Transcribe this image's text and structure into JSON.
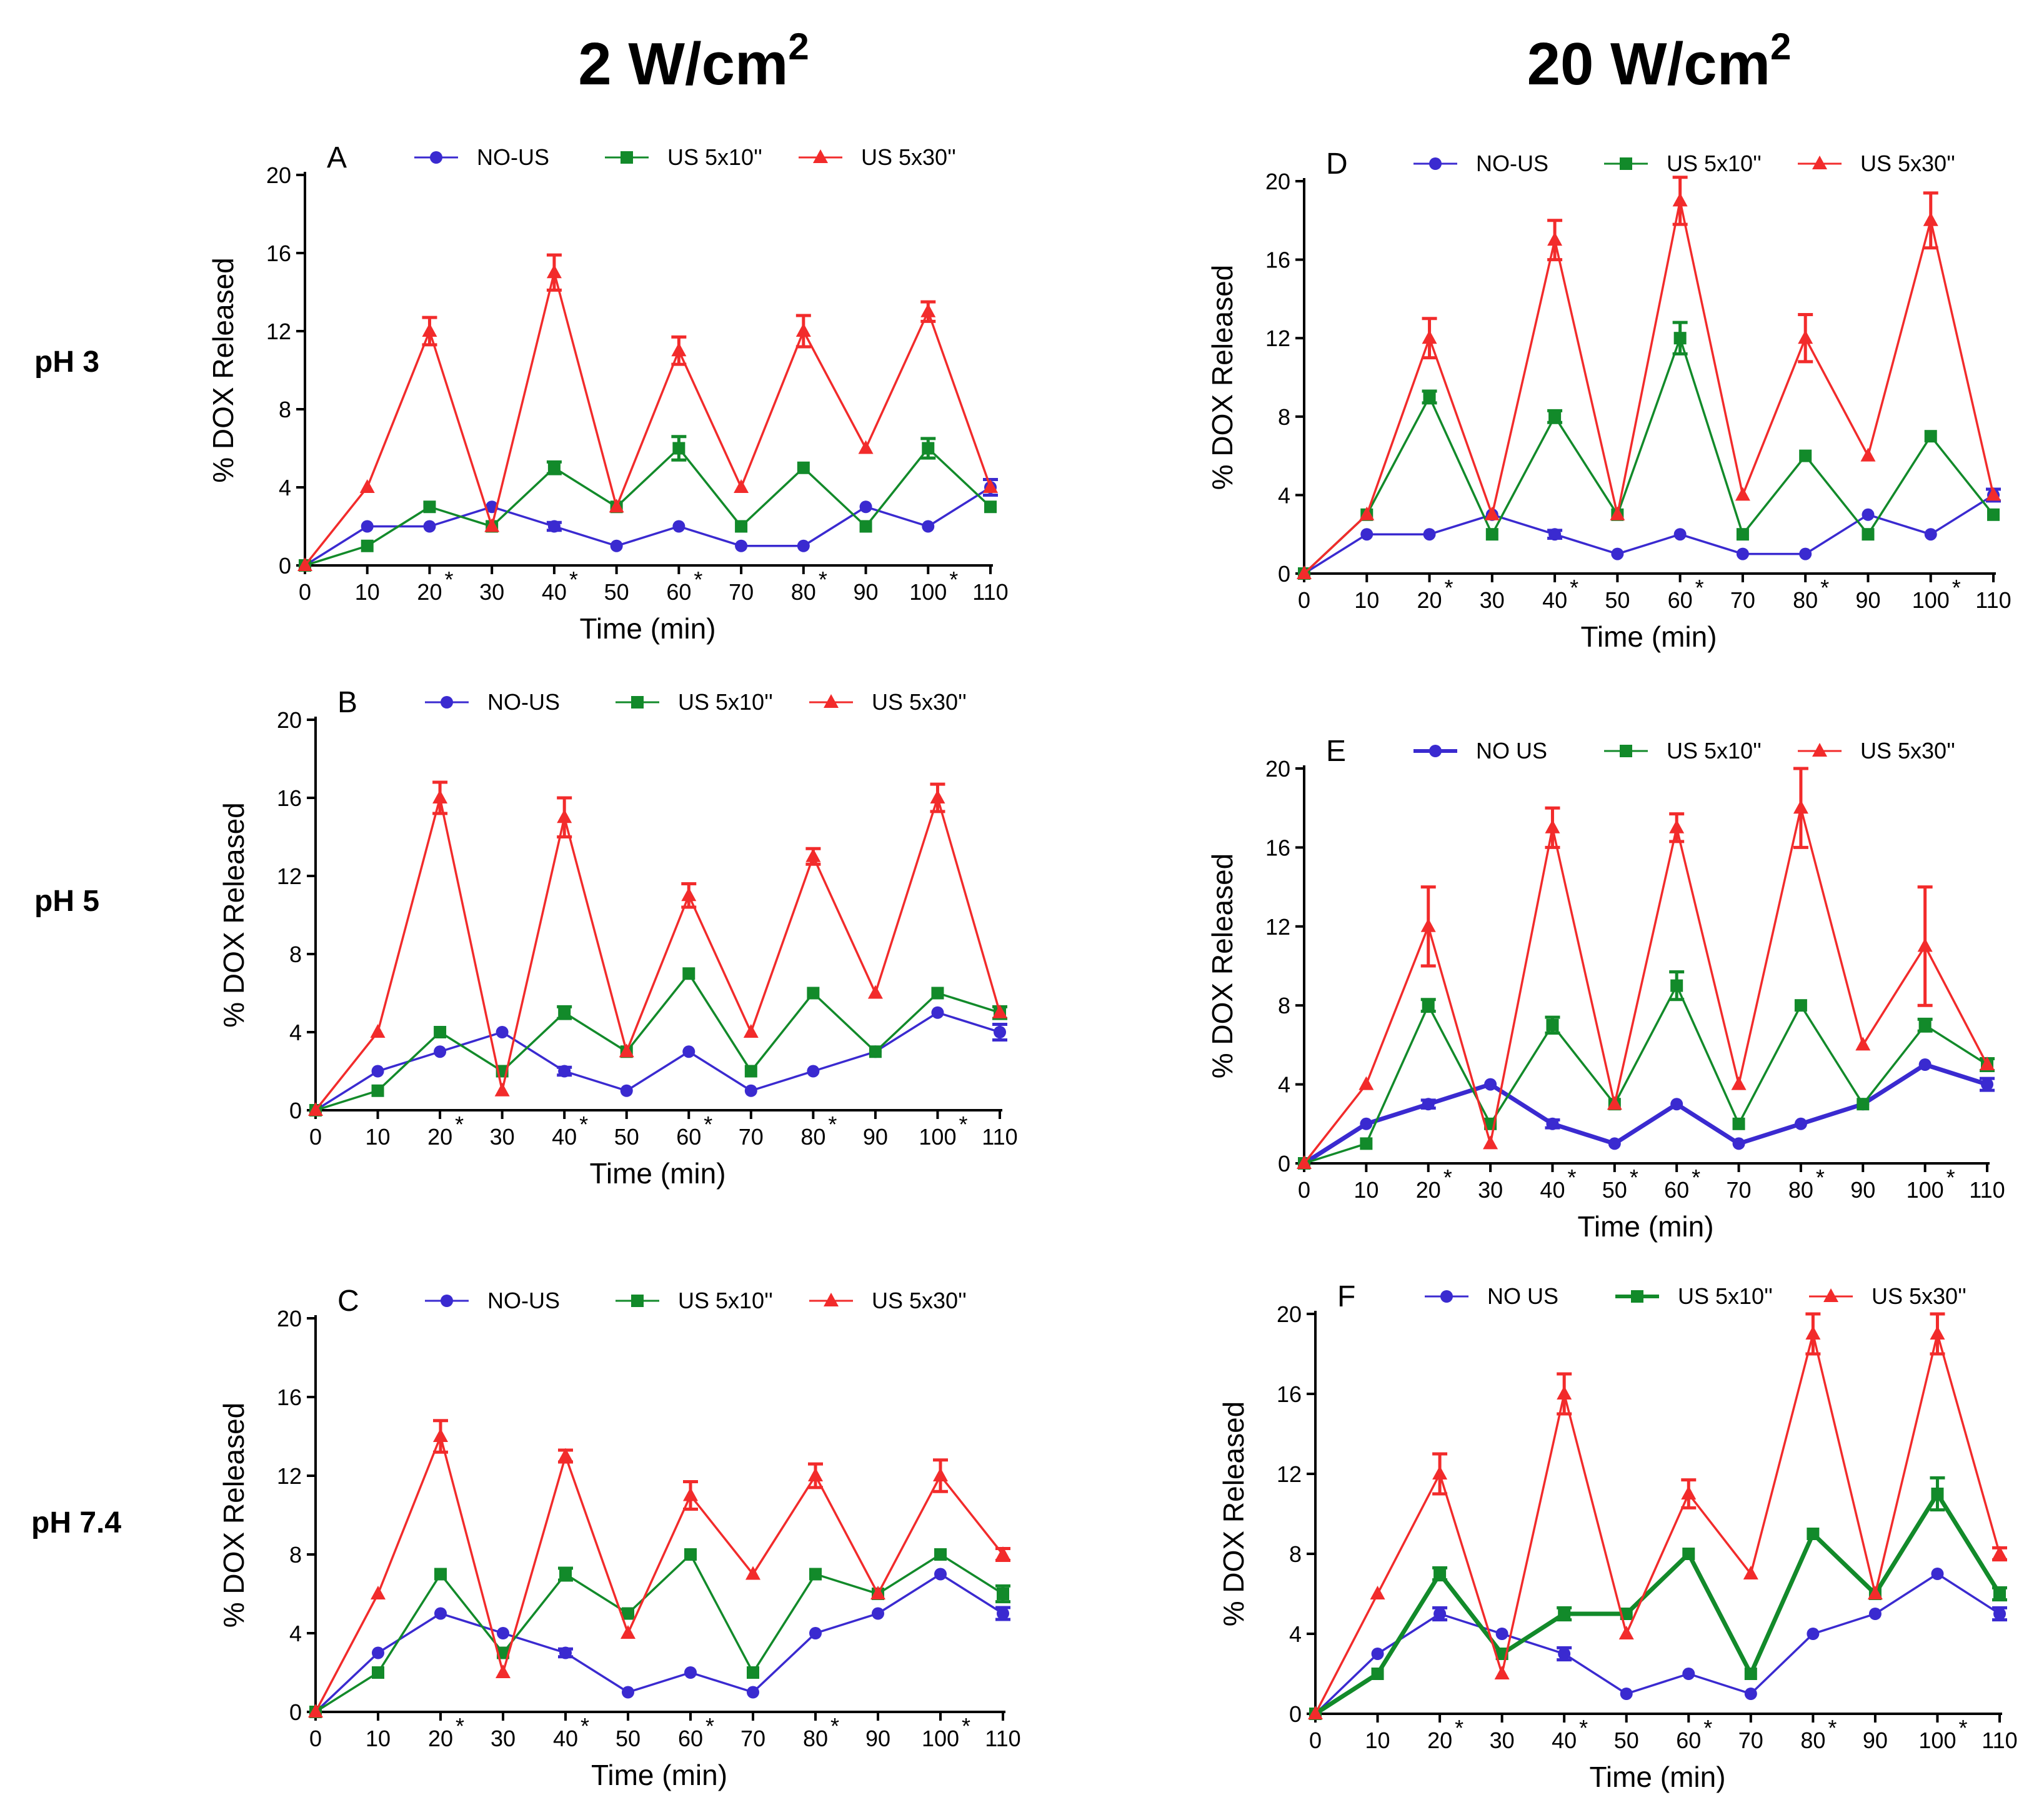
{
  "column_titles": [
    {
      "base": "2 W/cm",
      "sup": "2"
    },
    {
      "base": "20 W/cm",
      "sup": "2"
    }
  ],
  "row_labels": [
    "pH 3",
    "pH 5",
    "pH 7.4"
  ],
  "colors": {
    "no_us": "#3a2ad0",
    "us10": "#128a2a",
    "us30": "#f22b2b"
  },
  "chart_data": [
    {
      "panel": "A",
      "type": "line",
      "xlabel": "Time (min)",
      "ylabel": "% DOX Released",
      "ylim": [
        0,
        20
      ],
      "yticks": [
        0,
        4,
        8,
        12,
        16,
        20
      ],
      "x": [
        0,
        10,
        20,
        30,
        40,
        50,
        60,
        70,
        80,
        90,
        100,
        110
      ],
      "xtick_labels": [
        "0",
        "10",
        "20",
        "30",
        "40",
        "50",
        "60",
        "70",
        "80",
        "90",
        "100",
        "110"
      ],
      "starred": [
        20,
        40,
        60,
        80,
        100
      ],
      "series": [
        {
          "name": "NO-US",
          "marker": "circle",
          "values": [
            0,
            2,
            2,
            3,
            2,
            1,
            2,
            1,
            1,
            3,
            2,
            4
          ],
          "errors": [
            0,
            0,
            0,
            0,
            0.2,
            0,
            0,
            0,
            0,
            0,
            0,
            0.4
          ]
        },
        {
          "name": "US 5x10''",
          "marker": "square",
          "values": [
            0,
            1,
            3,
            2,
            5,
            3,
            6,
            2,
            5,
            2,
            6,
            3
          ],
          "errors": [
            0,
            0,
            0,
            0,
            0.3,
            0,
            0.6,
            0,
            0,
            0,
            0.5,
            0
          ]
        },
        {
          "name": "US 5x30''",
          "marker": "triangle",
          "values": [
            0,
            4,
            12,
            2,
            15,
            3,
            11,
            4,
            12,
            6,
            13,
            4
          ],
          "errors": [
            0,
            0,
            0.7,
            0,
            0.9,
            0,
            0.7,
            0,
            0.8,
            0,
            0.5,
            0
          ]
        }
      ]
    },
    {
      "panel": "B",
      "type": "line",
      "xlabel": "Time (min)",
      "ylabel": "% DOX Released",
      "ylim": [
        0,
        20
      ],
      "yticks": [
        0,
        4,
        8,
        12,
        16,
        20
      ],
      "x": [
        0,
        10,
        20,
        30,
        40,
        50,
        60,
        70,
        80,
        90,
        100,
        110
      ],
      "xtick_labels": [
        "0",
        "10",
        "20",
        "30",
        "40",
        "50",
        "60",
        "70",
        "80",
        "90",
        "100",
        "110"
      ],
      "starred": [
        20,
        40,
        60,
        80,
        100
      ],
      "series": [
        {
          "name": "NO-US",
          "marker": "circle",
          "values": [
            0,
            2,
            3,
            4,
            2,
            1,
            3,
            1,
            2,
            3,
            5,
            4
          ],
          "errors": [
            0,
            0,
            0,
            0,
            0.2,
            0,
            0,
            0,
            0,
            0,
            0,
            0.4
          ]
        },
        {
          "name": "US 5x10''",
          "marker": "square",
          "values": [
            0,
            1,
            4,
            2,
            5,
            3,
            7,
            2,
            6,
            3,
            6,
            5
          ],
          "errors": [
            0,
            0,
            0,
            0,
            0.3,
            0,
            0,
            0,
            0,
            0,
            0,
            0.3
          ]
        },
        {
          "name": "US 5x30''",
          "marker": "triangle",
          "values": [
            0,
            4,
            16,
            1,
            15,
            3,
            11,
            4,
            13,
            6,
            16,
            5
          ],
          "errors": [
            0,
            0,
            0.8,
            0,
            1.0,
            0,
            0.6,
            0,
            0.4,
            0,
            0.7,
            0
          ]
        }
      ]
    },
    {
      "panel": "C",
      "type": "line",
      "xlabel": "Time (min)",
      "ylabel": "% DOX Released",
      "ylim": [
        0,
        20
      ],
      "yticks": [
        0,
        4,
        8,
        12,
        16,
        20
      ],
      "x": [
        0,
        10,
        20,
        30,
        40,
        50,
        60,
        70,
        80,
        90,
        100,
        110
      ],
      "xtick_labels": [
        "0",
        "10",
        "20",
        "30",
        "40",
        "50",
        "60",
        "70",
        "80",
        "90",
        "100",
        "110"
      ],
      "starred": [
        20,
        40,
        60,
        80,
        100
      ],
      "series": [
        {
          "name": "NO-US",
          "marker": "circle",
          "values": [
            0,
            3,
            5,
            4,
            3,
            1,
            2,
            1,
            4,
            5,
            7,
            5
          ],
          "errors": [
            0,
            0,
            0,
            0,
            0.2,
            0,
            0,
            0,
            0,
            0,
            0,
            0.3
          ]
        },
        {
          "name": "US 5x10''",
          "marker": "square",
          "values": [
            0,
            2,
            7,
            3,
            7,
            5,
            8,
            2,
            7,
            6,
            8,
            6
          ],
          "errors": [
            0,
            0,
            0,
            0,
            0.3,
            0,
            0,
            0,
            0,
            0,
            0,
            0.4
          ]
        },
        {
          "name": "US 5x30''",
          "marker": "triangle",
          "values": [
            0,
            6,
            14,
            2,
            13,
            4,
            11,
            7,
            12,
            6,
            12,
            8
          ],
          "errors": [
            0,
            0,
            0.8,
            0,
            0.3,
            0,
            0.7,
            0,
            0.6,
            0,
            0.8,
            0.3
          ]
        }
      ]
    },
    {
      "panel": "D",
      "type": "line",
      "xlabel": "Time (min)",
      "ylabel": "% DOX Released",
      "ylim": [
        0,
        20
      ],
      "yticks": [
        0,
        4,
        8,
        12,
        16,
        20
      ],
      "x": [
        0,
        10,
        20,
        30,
        40,
        50,
        60,
        70,
        80,
        90,
        100,
        110
      ],
      "xtick_labels": [
        "0",
        "10",
        "20",
        "30",
        "40",
        "50",
        "60",
        "70",
        "80",
        "90",
        "100",
        "110"
      ],
      "starred": [
        20,
        40,
        60,
        80,
        100
      ],
      "series": [
        {
          "name": "NO-US",
          "marker": "circle",
          "values": [
            0,
            2,
            2,
            3,
            2,
            1,
            2,
            1,
            1,
            3,
            2,
            4
          ],
          "errors": [
            0,
            0,
            0,
            0,
            0.2,
            0,
            0,
            0,
            0,
            0,
            0,
            0.3
          ]
        },
        {
          "name": "US 5x10''",
          "marker": "square",
          "values": [
            0,
            3,
            9,
            2,
            8,
            3,
            12,
            2,
            6,
            2,
            7,
            3
          ],
          "errors": [
            0,
            0,
            0.3,
            0,
            0.3,
            0,
            0.8,
            0,
            0,
            0,
            0,
            0
          ]
        },
        {
          "name": "US 5x30''",
          "marker": "triangle",
          "values": [
            0,
            3,
            12,
            3,
            17,
            3,
            19,
            4,
            12,
            6,
            18,
            4
          ],
          "errors": [
            0,
            0,
            1.0,
            0,
            1.0,
            0,
            1.2,
            0,
            1.2,
            0,
            1.4,
            0
          ]
        }
      ]
    },
    {
      "panel": "E",
      "type": "line",
      "xlabel": "Time (min)",
      "ylabel": "% DOX Released",
      "ylim": [
        0,
        20
      ],
      "yticks": [
        0,
        4,
        8,
        12,
        16,
        20
      ],
      "x": [
        0,
        10,
        20,
        30,
        40,
        50,
        60,
        70,
        80,
        90,
        100,
        110
      ],
      "xtick_labels": [
        "0",
        "10",
        "20",
        "30",
        "40",
        "50",
        "60",
        "70",
        "80",
        "90",
        "100",
        "110"
      ],
      "starred": [
        20,
        40,
        50,
        60,
        80,
        100
      ],
      "series": [
        {
          "name": "NO US",
          "marker": "circle",
          "values": [
            0,
            2,
            3,
            4,
            2,
            1,
            3,
            1,
            2,
            3,
            5,
            4
          ],
          "errors": [
            0,
            0,
            0.2,
            0,
            0.2,
            0,
            0,
            0,
            0,
            0,
            0,
            0.3
          ]
        },
        {
          "name": "US 5x10''",
          "marker": "square",
          "values": [
            0,
            1,
            8,
            2,
            7,
            3,
            9,
            2,
            8,
            3,
            7,
            5
          ],
          "errors": [
            0,
            0,
            0.3,
            0,
            0.4,
            0,
            0.7,
            0,
            0,
            0,
            0.3,
            0.3
          ]
        },
        {
          "name": "US 5x30''",
          "marker": "triangle",
          "values": [
            0,
            4,
            12,
            1,
            17,
            3,
            17,
            4,
            18,
            6,
            11,
            5
          ],
          "errors": [
            0,
            0,
            2.0,
            0,
            1.0,
            0,
            0.7,
            0,
            2.0,
            0,
            3.0,
            0
          ]
        }
      ]
    },
    {
      "panel": "F",
      "type": "line",
      "xlabel": "Time (min)",
      "ylabel": "% DOX Released",
      "ylim": [
        0,
        20
      ],
      "yticks": [
        0,
        4,
        8,
        12,
        16,
        20
      ],
      "x": [
        0,
        10,
        20,
        30,
        40,
        50,
        60,
        70,
        80,
        90,
        100,
        110
      ],
      "xtick_labels": [
        "0",
        "10",
        "20",
        "30",
        "40",
        "50",
        "60",
        "70",
        "80",
        "90",
        "100",
        "110"
      ],
      "starred": [
        20,
        40,
        60,
        80,
        100
      ],
      "series": [
        {
          "name": "NO US",
          "marker": "circle",
          "values": [
            0,
            3,
            5,
            4,
            3,
            1,
            2,
            1,
            4,
            5,
            7,
            5
          ],
          "errors": [
            0,
            0,
            0.3,
            0,
            0.3,
            0,
            0,
            0,
            0,
            0,
            0,
            0.3
          ]
        },
        {
          "name": "US 5x10''",
          "marker": "square",
          "values": [
            0,
            2,
            7,
            3,
            5,
            5,
            8,
            2,
            9,
            6,
            11,
            6
          ],
          "errors": [
            0,
            0,
            0.3,
            0,
            0.3,
            0,
            0,
            0,
            0,
            0,
            0.8,
            0.3
          ]
        },
        {
          "name": "US 5x30''",
          "marker": "triangle",
          "values": [
            0,
            6,
            12,
            2,
            16,
            4,
            11,
            7,
            19,
            6,
            19,
            8
          ],
          "errors": [
            0,
            0,
            1.0,
            0,
            1.0,
            0,
            0.7,
            0,
            1.0,
            0,
            1.0,
            0.3
          ]
        }
      ]
    }
  ]
}
